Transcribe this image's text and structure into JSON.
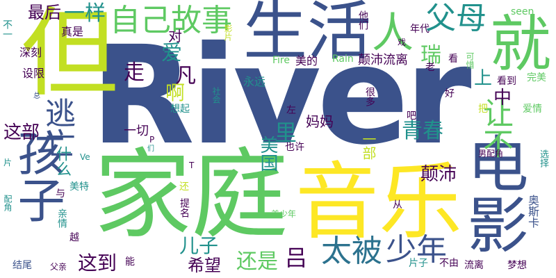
{
  "colors": {
    "background": "#ffffff",
    "palette": [
      "#440154",
      "#3b528b",
      "#21918c",
      "#5ec962",
      "#fde725"
    ]
  },
  "words": [
    {
      "text": "River",
      "color": "#3b528b"
    },
    {
      "text": "但",
      "color": "#c2df23"
    },
    {
      "text": "生活",
      "color": "#3b528b"
    },
    {
      "text": "就",
      "color": "#5ec962"
    },
    {
      "text": "人",
      "color": "#5ec962"
    },
    {
      "text": "家庭",
      "color": "#5ec962"
    },
    {
      "text": "音乐",
      "color": "#fde725"
    },
    {
      "text": "电影",
      "color": "#3b528b"
    },
    {
      "text": "孩子",
      "color": "#3b528b"
    },
    {
      "text": "父母",
      "color": "#21918c"
    },
    {
      "text": "自己故事",
      "color": "#5ec962"
    },
    {
      "text": "一样",
      "color": "#21918c"
    },
    {
      "text": "逃亡",
      "color": "#3b528b"
    },
    {
      "text": "最后",
      "color": "#440154"
    },
    {
      "text": "少年",
      "color": "#3b528b"
    },
    {
      "text": "太被",
      "color": "#2c728e"
    },
    {
      "text": "吕",
      "color": "#440154"
    },
    {
      "text": "青春",
      "color": "#21918c"
    },
    {
      "text": "让不",
      "color": "#5ec962"
    },
    {
      "text": "瑞",
      "color": "#5ec962"
    },
    {
      "text": "凡",
      "color": "#440154"
    },
    {
      "text": "爱",
      "color": "#21918c"
    },
    {
      "text": "走",
      "color": "#440154"
    },
    {
      "text": "对",
      "color": "#440154"
    },
    {
      "text": "啊",
      "color": "#c2df23"
    },
    {
      "text": "里",
      "color": "#21918c"
    },
    {
      "text": "上",
      "color": "#21918c"
    },
    {
      "text": "中",
      "color": "#440154"
    },
    {
      "text": "这到",
      "color": "#440154"
    },
    {
      "text": "儿子",
      "color": "#21918c"
    },
    {
      "text": "希望",
      "color": "#440154"
    },
    {
      "text": "还是",
      "color": "#5ec962"
    },
    {
      "text": "颠沛",
      "color": "#440154"
    },
    {
      "text": "这部",
      "color": "#440154"
    },
    {
      "text": "什么",
      "color": "#21918c"
    },
    {
      "text": "美国",
      "color": "#21918c"
    },
    {
      "text": "妈妈",
      "color": "#440154"
    },
    {
      "text": "一部",
      "color": "#c2df23"
    },
    {
      "text": "一切",
      "color": "#440154"
    },
    {
      "text": "真是",
      "color": "#440154"
    },
    {
      "text": "深刻",
      "color": "#440154"
    },
    {
      "text": "设限",
      "color": "#440154"
    },
    {
      "text": "永远",
      "color": "#21918c"
    },
    {
      "text": "美的",
      "color": "#440154"
    },
    {
      "text": "Fire",
      "color": "#5ec962"
    },
    {
      "text": "Rain",
      "color": "#5ec962"
    },
    {
      "text": "颠沛流离",
      "color": "#440154"
    },
    {
      "text": "年代",
      "color": "#440154"
    },
    {
      "text": "seen",
      "color": "#5ec962"
    },
    {
      "text": "看",
      "color": "#440154"
    },
    {
      "text": "可惜",
      "color": "#5ec962"
    },
    {
      "text": "完美",
      "color": "#5ec962"
    },
    {
      "text": "看到",
      "color": "#440154"
    },
    {
      "text": "老",
      "color": "#440154"
    },
    {
      "text": "好",
      "color": "#440154"
    },
    {
      "text": "爱情",
      "color": "#5ec962"
    },
    {
      "text": "想起",
      "color": "#21918c"
    },
    {
      "text": "社会",
      "color": "#21918c"
    },
    {
      "text": "很多",
      "color": "#440154"
    },
    {
      "text": "吧",
      "color": "#440154"
    },
    {
      "text": "把",
      "color": "#c2df23"
    },
    {
      "text": "左",
      "color": "#440154"
    },
    {
      "text": "也许",
      "color": "#440154"
    },
    {
      "text": "男配角",
      "color": "#440154"
    },
    {
      "text": "选择",
      "color": "#21918c"
    },
    {
      "text": "奥斯卡",
      "color": "#3b528b"
    },
    {
      "text": "从",
      "color": "#440154"
    },
    {
      "text": "提名",
      "color": "#440154"
    },
    {
      "text": "还",
      "color": "#c2df23"
    },
    {
      "text": "美特",
      "color": "#21918c"
    },
    {
      "text": "与",
      "color": "#440154"
    },
    {
      "text": "越",
      "color": "#440154"
    },
    {
      "text": "亲情",
      "color": "#21918c"
    },
    {
      "text": "美少年",
      "color": "#5ec962"
    },
    {
      "text": "结尾",
      "color": "#3b528b"
    },
    {
      "text": "父亲",
      "color": "#440154"
    },
    {
      "text": "能",
      "color": "#440154"
    },
    {
      "text": "片子",
      "color": "#21918c"
    },
    {
      "text": "不由",
      "color": "#440154"
    },
    {
      "text": "流离",
      "color": "#440154"
    },
    {
      "text": "梦想",
      "color": "#440154"
    },
    {
      "text": "配角",
      "color": "#21918c"
    },
    {
      "text": "片",
      "color": "#21918c"
    },
    {
      "text": "不一",
      "color": "#21918c"
    },
    {
      "text": "影片",
      "color": "#c2df23"
    },
    {
      "text": "戏",
      "color": "#440154"
    },
    {
      "text": "他们",
      "color": "#440154"
    },
    {
      "text": "P",
      "color": "#440154"
    },
    {
      "text": "Ve",
      "color": "#21918c"
    },
    {
      "text": "T",
      "color": "#440154"
    },
    {
      "text": "总",
      "color": "#3b528b"
    },
    {
      "text": "们",
      "color": "#21918c"
    }
  ]
}
